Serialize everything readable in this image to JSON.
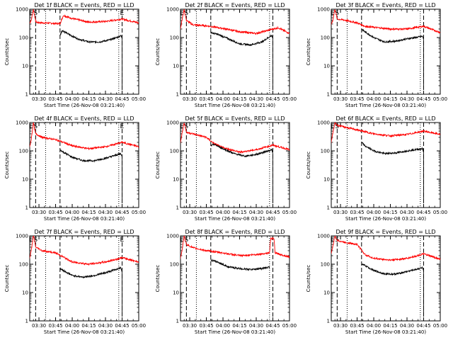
{
  "chart_data": {
    "type": "line",
    "layout": {
      "rows": 3,
      "cols": 3
    },
    "yscale": "log",
    "ylim": [
      1,
      1000
    ],
    "ytick_labels": [
      "1",
      "10",
      "100",
      "1000"
    ],
    "ylabel": "Counts/sec",
    "xlabel": "Start Time (26-Nov-08 03:21:40)",
    "xtick_labels": [
      "03:30",
      "03:45",
      "04:00",
      "04:15",
      "04:30",
      "04:45",
      "05:00"
    ],
    "series_colors": {
      "events": "#000000",
      "lld": "#ff0000"
    },
    "panels": [
      {
        "title": "Det 1f BLACK = Events, RED = LLD",
        "flags": [
          {
            "label": "E",
            "at": "03:23"
          },
          {
            "label": "S",
            "at": "03:27"
          },
          {
            "label": "E",
            "at": "04:45"
          }
        ],
        "markers": [
          {
            "style": "dashed",
            "at": "03:27"
          },
          {
            "style": "dotted",
            "at": "03:36"
          },
          {
            "style": "dashed",
            "at": "03:49"
          },
          {
            "style": "dotted",
            "at": "04:42"
          },
          {
            "style": "dashed",
            "at": "04:45"
          }
        ],
        "lld": {
          "x": [
            "03:21",
            "03:23",
            "03:25",
            "03:26",
            "03:27",
            "03:28",
            "03:33",
            "03:49",
            "03:52",
            "04:00",
            "04:15",
            "04:30",
            "04:45",
            "05:00"
          ],
          "y": [
            300,
            400,
            1000,
            600,
            380,
            340,
            330,
            310,
            600,
            470,
            350,
            370,
            450,
            330
          ]
        },
        "events": {
          "x": [
            "03:49",
            "03:51",
            "03:56",
            "04:05",
            "04:15",
            "04:25",
            "04:35",
            "04:44",
            "04:44.9",
            "04:45"
          ],
          "y": [
            120,
            180,
            135,
            90,
            70,
            70,
            85,
            115,
            100,
            2
          ]
        }
      },
      {
        "title": "Det 2f BLACK = Events, RED = LLD",
        "flags": [
          {
            "label": "E",
            "at": "03:23"
          },
          {
            "label": "S",
            "at": "03:27"
          }
        ],
        "markers": [
          {
            "style": "dashed",
            "at": "03:27"
          },
          {
            "style": "dotted",
            "at": "03:36"
          },
          {
            "style": "dashed",
            "at": "03:49"
          },
          {
            "style": "dotted",
            "at": "04:42"
          },
          {
            "style": "dashed",
            "at": "04:45"
          }
        ],
        "lld": {
          "x": [
            "03:21",
            "03:23",
            "03:25",
            "03:26",
            "03:27",
            "03:33",
            "03:45",
            "04:00",
            "04:15",
            "04:30",
            "04:45",
            "04:50",
            "05:00"
          ],
          "y": [
            150,
            400,
            1000,
            600,
            400,
            280,
            260,
            210,
            160,
            140,
            200,
            220,
            140
          ]
        },
        "events": {
          "x": [
            "03:49",
            "03:55",
            "04:05",
            "04:15",
            "04:25",
            "04:35",
            "04:44",
            "04:44.9",
            "04:45"
          ],
          "y": [
            150,
            130,
            90,
            60,
            55,
            70,
            120,
            90,
            2
          ]
        }
      },
      {
        "title": "Det 3f BLACK = Events, RED = LLD",
        "flags": [
          {
            "label": "E",
            "at": "03:23"
          },
          {
            "label": "S",
            "at": "03:27"
          }
        ],
        "markers": [
          {
            "style": "dashed",
            "at": "03:27"
          },
          {
            "style": "dotted",
            "at": "03:36"
          },
          {
            "style": "dashed",
            "at": "03:49"
          },
          {
            "style": "dotted",
            "at": "04:42"
          },
          {
            "style": "dashed",
            "at": "04:45"
          }
        ],
        "lld": {
          "x": [
            "03:21",
            "03:23",
            "03:25",
            "03:26",
            "03:27",
            "03:33",
            "03:45",
            "03:52",
            "04:00",
            "04:15",
            "04:30",
            "04:45",
            "05:00"
          ],
          "y": [
            250,
            400,
            1000,
            700,
            450,
            420,
            330,
            250,
            230,
            200,
            200,
            250,
            150
          ]
        },
        "events": {
          "x": [
            "03:49",
            "03:52",
            "04:00",
            "04:10",
            "04:20",
            "04:30",
            "04:44",
            "04:44.9",
            "04:45"
          ],
          "y": [
            200,
            160,
            100,
            70,
            75,
            90,
            110,
            90,
            2
          ]
        }
      },
      {
        "title": "Det 4f BLACK = Events, RED = LLD",
        "flags": [
          {
            "label": "E",
            "at": "03:23"
          },
          {
            "label": "S",
            "at": "03:27"
          },
          {
            "label": "E",
            "at": "04:45"
          }
        ],
        "markers": [
          {
            "style": "dashed",
            "at": "03:27"
          },
          {
            "style": "dotted",
            "at": "03:36"
          },
          {
            "style": "dashed",
            "at": "03:49"
          },
          {
            "style": "dotted",
            "at": "04:42"
          },
          {
            "style": "dashed",
            "at": "04:45"
          }
        ],
        "lld": {
          "x": [
            "03:21",
            "03:23",
            "03:25",
            "03:26",
            "03:27",
            "03:33",
            "03:45",
            "03:52",
            "04:00",
            "04:15",
            "04:30",
            "04:45",
            "05:00"
          ],
          "y": [
            100,
            250,
            1000,
            600,
            400,
            300,
            250,
            200,
            150,
            120,
            140,
            200,
            140
          ]
        },
        "events": {
          "x": [
            "03:49",
            "03:52",
            "04:00",
            "04:10",
            "04:20",
            "04:30",
            "04:44",
            "04:44.9",
            "04:45"
          ],
          "y": [
            110,
            90,
            60,
            45,
            45,
            55,
            80,
            60,
            2
          ]
        }
      },
      {
        "title": "Det 5f BLACK = Events, RED = LLD",
        "flags": [
          {
            "label": "E",
            "at": "03:23"
          },
          {
            "label": "S",
            "at": "03:27"
          }
        ],
        "markers": [
          {
            "style": "dashed",
            "at": "03:27"
          },
          {
            "style": "dotted",
            "at": "03:36"
          },
          {
            "style": "dashed",
            "at": "03:49"
          },
          {
            "style": "dotted",
            "at": "04:42"
          },
          {
            "style": "dashed",
            "at": "04:45"
          }
        ],
        "lld": {
          "x": [
            "03:21",
            "03:23",
            "03:25",
            "03:26",
            "03:27",
            "03:33",
            "03:45",
            "03:52",
            "04:00",
            "04:15",
            "04:30",
            "04:45",
            "05:00"
          ],
          "y": [
            150,
            400,
            1000,
            700,
            450,
            400,
            300,
            180,
            130,
            90,
            110,
            160,
            110
          ]
        },
        "events": {
          "x": [
            "03:49",
            "03:52",
            "04:00",
            "04:10",
            "04:20",
            "04:30",
            "04:44",
            "04:44.9",
            "04:45"
          ],
          "y": [
            150,
            170,
            120,
            80,
            65,
            75,
            110,
            80,
            2
          ]
        }
      },
      {
        "title": "Det 6f BLACK = Events, RED = LLD",
        "flags": [
          {
            "label": "E",
            "at": "03:23"
          },
          {
            "label": "S",
            "at": "03:27"
          }
        ],
        "markers": [
          {
            "style": "dashed",
            "at": "03:27"
          },
          {
            "style": "dotted",
            "at": "03:36"
          },
          {
            "style": "dashed",
            "at": "03:49"
          },
          {
            "style": "dotted",
            "at": "04:42"
          },
          {
            "style": "dashed",
            "at": "04:45"
          }
        ],
        "lld": {
          "x": [
            "03:21",
            "03:23",
            "03:25",
            "03:26",
            "03:27",
            "03:33",
            "03:45",
            "04:00",
            "04:15",
            "04:30",
            "04:45",
            "05:00"
          ],
          "y": [
            150,
            400,
            1000,
            900,
            800,
            700,
            550,
            400,
            340,
            380,
            500,
            380
          ]
        },
        "events": {
          "x": [
            "03:49",
            "03:52",
            "04:00",
            "04:10",
            "04:20",
            "04:30",
            "04:44",
            "04:44.9",
            "04:45"
          ],
          "y": [
            200,
            150,
            100,
            80,
            85,
            100,
            120,
            90,
            2
          ]
        }
      },
      {
        "title": "Det 7f BLACK = Events, RED = LLD",
        "flags": [
          {
            "label": "E",
            "at": "03:23"
          },
          {
            "label": "S",
            "at": "03:27"
          },
          {
            "label": "E",
            "at": "04:45"
          }
        ],
        "markers": [
          {
            "style": "dashed",
            "at": "03:27"
          },
          {
            "style": "dotted",
            "at": "03:36"
          },
          {
            "style": "dashed",
            "at": "03:49"
          },
          {
            "style": "dotted",
            "at": "04:42"
          },
          {
            "style": "dashed",
            "at": "04:45"
          }
        ],
        "lld": {
          "x": [
            "03:21",
            "03:23",
            "03:25",
            "03:26",
            "03:27",
            "03:33",
            "03:45",
            "03:52",
            "04:00",
            "04:15",
            "04:30",
            "04:45",
            "05:00"
          ],
          "y": [
            120,
            300,
            1000,
            700,
            400,
            300,
            250,
            180,
            120,
            100,
            120,
            170,
            120
          ]
        },
        "events": {
          "x": [
            "03:49",
            "03:52",
            "04:00",
            "04:10",
            "04:20",
            "04:30",
            "04:44",
            "04:44.9",
            "04:45"
          ],
          "y": [
            70,
            60,
            40,
            35,
            40,
            50,
            75,
            55,
            2
          ]
        }
      },
      {
        "title": "Det 8f BLACK = Events, RED = LLD",
        "flags": [
          {
            "label": "E",
            "at": "03:23"
          },
          {
            "label": "S",
            "at": "03:27"
          }
        ],
        "markers": [
          {
            "style": "dashed",
            "at": "03:27"
          },
          {
            "style": "dotted",
            "at": "03:36"
          },
          {
            "style": "dashed",
            "at": "03:49"
          },
          {
            "style": "dotted",
            "at": "04:42"
          },
          {
            "style": "dashed",
            "at": "04:45"
          }
        ],
        "lld": {
          "x": [
            "03:21",
            "03:23",
            "03:25",
            "03:26",
            "03:27",
            "03:33",
            "03:45",
            "04:00",
            "04:15",
            "04:30",
            "04:42",
            "04:43",
            "04:46",
            "04:47",
            "05:00"
          ],
          "y": [
            120,
            300,
            1000,
            700,
            500,
            380,
            300,
            250,
            200,
            220,
            250,
            800,
            800,
            250,
            180
          ]
        },
        "events": {
          "x": [
            "03:49",
            "03:55",
            "04:05",
            "04:15",
            "04:25",
            "04:35",
            "04:42"
          ],
          "y": [
            140,
            120,
            80,
            70,
            65,
            70,
            80
          ]
        }
      },
      {
        "title": "Det 9f BLACK = Events, RED = LLD",
        "flags": [
          {
            "label": "E",
            "at": "03:23"
          },
          {
            "label": "S",
            "at": "03:27"
          }
        ],
        "markers": [
          {
            "style": "dashed",
            "at": "03:27"
          },
          {
            "style": "dotted",
            "at": "03:36"
          },
          {
            "style": "dashed",
            "at": "03:49"
          },
          {
            "style": "dotted",
            "at": "04:42"
          },
          {
            "style": "dashed",
            "at": "04:45"
          }
        ],
        "lld": {
          "x": [
            "03:21",
            "03:23",
            "03:25",
            "03:26",
            "03:27",
            "03:33",
            "03:45",
            "03:52",
            "04:00",
            "04:15",
            "04:30",
            "04:45",
            "05:00"
          ],
          "y": [
            200,
            400,
            1000,
            800,
            700,
            600,
            500,
            220,
            160,
            140,
            160,
            230,
            150
          ]
        },
        "events": {
          "x": [
            "03:49",
            "03:52",
            "04:00",
            "04:10",
            "04:20",
            "04:30",
            "04:44",
            "04:44.9",
            "04:45"
          ],
          "y": [
            100,
            90,
            60,
            45,
            45,
            55,
            75,
            55,
            2
          ]
        }
      }
    ]
  }
}
